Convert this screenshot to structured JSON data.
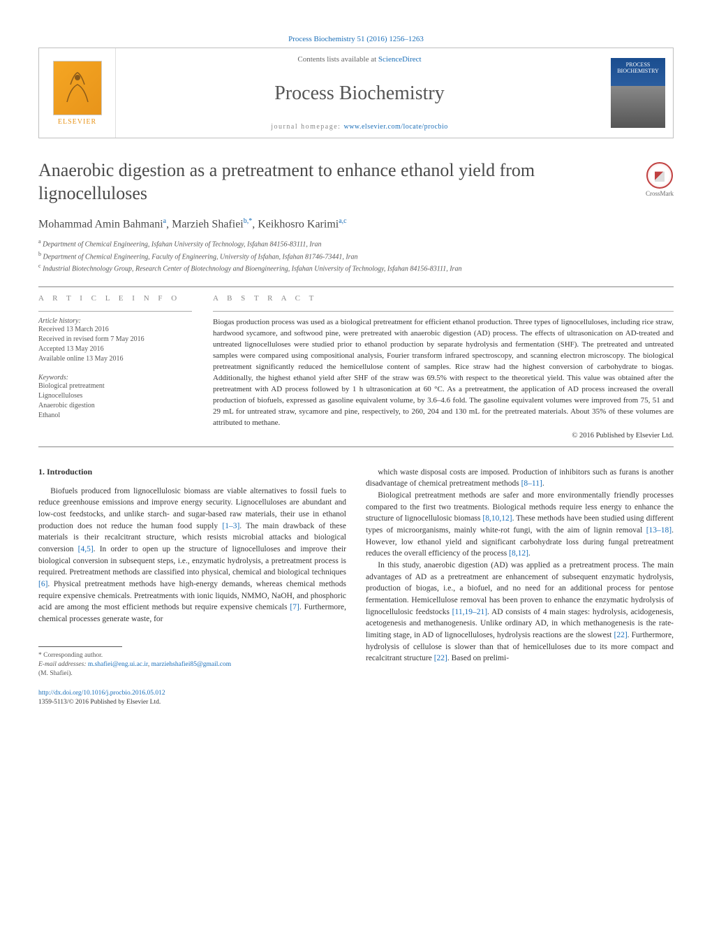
{
  "journal_ref": "Process Biochemistry 51 (2016) 1256–1263",
  "masthead": {
    "publisher": "ELSEVIER",
    "contents_prefix": "Contents lists available at ",
    "contents_link": "ScienceDirect",
    "journal_name": "Process Biochemistry",
    "homepage_prefix": "journal homepage: ",
    "homepage_link": "www.elsevier.com/locate/procbio",
    "cover_title": "PROCESS BIOCHEMISTRY"
  },
  "crossmark_label": "CrossMark",
  "title": "Anaerobic digestion as a pretreatment to enhance ethanol yield from lignocelluloses",
  "authors_html": "Mohammad Amin Bahmani<sup>a</sup>, Marzieh Shafiei<sup>b,*</sup>, Keikhosro Karimi<sup>a,c</sup>",
  "affiliations": [
    {
      "sup": "a",
      "text": "Department of Chemical Engineering, Isfahan University of Technology, Isfahan 84156-83111, Iran"
    },
    {
      "sup": "b",
      "text": "Department of Chemical Engineering, Faculty of Engineering, University of Isfahan, Isfahan 81746-73441, Iran"
    },
    {
      "sup": "c",
      "text": "Industrial Biotechnology Group, Research Center of Biotechnology and Bioengineering, Isfahan University of Technology, Isfahan 84156-83111, Iran"
    }
  ],
  "info": {
    "heading": "a r t i c l e   i n f o",
    "history_label": "Article history:",
    "history": [
      "Received 13 March 2016",
      "Received in revised form 7 May 2016",
      "Accepted 13 May 2016",
      "Available online 13 May 2016"
    ],
    "keywords_label": "Keywords:",
    "keywords": [
      "Biological pretreatment",
      "Lignocelluloses",
      "Anaerobic digestion",
      "Ethanol"
    ]
  },
  "abstract": {
    "heading": "a b s t r a c t",
    "text": "Biogas production process was used as a biological pretreatment for efficient ethanol production. Three types of lignocelluloses, including rice straw, hardwood sycamore, and softwood pine, were pretreated with anaerobic digestion (AD) process. The effects of ultrasonication on AD-treated and untreated lignocelluloses were studied prior to ethanol production by separate hydrolysis and fermentation (SHF). The pretreated and untreated samples were compared using compositional analysis, Fourier transform infrared spectroscopy, and scanning electron microscopy. The biological pretreatment significantly reduced the hemicellulose content of samples. Rice straw had the highest conversion of carbohydrate to biogas. Additionally, the highest ethanol yield after SHF of the straw was 69.5% with respect to the theoretical yield. This value was obtained after the pretreatment with AD process followed by 1 h ultrasonication at 60 °C. As a pretreatment, the application of AD process increased the overall production of biofuels, expressed as gasoline equivalent volume, by 3.6–4.6 fold. The gasoline equivalent volumes were improved from 75, 51 and 29 mL for untreated straw, sycamore and pine, respectively, to 260, 204 and 130 mL for the pretreated materials. About 35% of these volumes are attributed to methane.",
    "copyright": "© 2016 Published by Elsevier Ltd."
  },
  "body": {
    "section_heading": "1. Introduction",
    "col1_paras": [
      "Biofuels produced from lignocellulosic biomass are viable alternatives to fossil fuels to reduce greenhouse emissions and improve energy security. Lignocelluloses are abundant and low-cost feedstocks, and unlike starch- and sugar-based raw materials, their use in ethanol production does not reduce the human food supply [1–3]. The main drawback of these materials is their recalcitrant structure, which resists microbial attacks and biological conversion [4,5]. In order to open up the structure of lignocelluloses and improve their biological conversion in subsequent steps, i.e., enzymatic hydrolysis, a pretreatment process is required. Pretreatment methods are classified into physical, chemical and biological techniques [6]. Physical pretreatment methods have high-energy demands, whereas chemical methods require expensive chemicals. Pretreatments with ionic liquids, NMMO, NaOH, and phosphoric acid are among the most efficient methods but require expensive chemicals [7]. Furthermore, chemical processes generate waste, for"
    ],
    "col2_paras": [
      "which waste disposal costs are imposed. Production of inhibitors such as furans is another disadvantage of chemical pretreatment methods [8–11].",
      "Biological pretreatment methods are safer and more environmentally friendly processes compared to the first two treatments. Biological methods require less energy to enhance the structure of lignocellulosic biomass [8,10,12]. These methods have been studied using different types of microorganisms, mainly white-rot fungi, with the aim of lignin removal [13–18]. However, low ethanol yield and significant carbohydrate loss during fungal pretreatment reduces the overall efficiency of the process [8,12].",
      "In this study, anaerobic digestion (AD) was applied as a pretreatment process. The main advantages of AD as a pretreatment are enhancement of subsequent enzymatic hydrolysis, production of biogas, i.e., a biofuel, and no need for an additional process for pentose fermentation. Hemicellulose removal has been proven to enhance the enzymatic hydrolysis of lignocellulosic feedstocks [11,19–21]. AD consists of 4 main stages: hydrolysis, acidogenesis, acetogenesis and methanogenesis. Unlike ordinary AD, in which methanogenesis is the rate-limiting stage, in AD of lignocelluloses, hydrolysis reactions are the slowest [22]. Furthermore, hydrolysis of cellulose is slower than that of hemicelluloses due to its more compact and recalcitrant structure [22]. Based on prelimi-"
    ],
    "refs_col1": {
      "r1": "[1–3]",
      "r2": "[4,5]",
      "r3": "[6]",
      "r4": "[7]"
    },
    "refs_col2": {
      "r1": "[8–11]",
      "r2": "[8,10,12]",
      "r3": "[13–18]",
      "r4": "[8,12]",
      "r5": "[11,19–21]",
      "r6": "[22]",
      "r7": "[22]"
    }
  },
  "footnote": {
    "corr": "* Corresponding author.",
    "email_label": "E-mail addresses: ",
    "email1": "m.shafiei@eng.ui.ac.ir",
    "email2": "marziehshafiei85@gmail.com",
    "author_paren": "(M. Shafiei)."
  },
  "doi": {
    "link": "http://dx.doi.org/10.1016/j.procbio.2016.05.012",
    "issn_line": "1359-5113/© 2016 Published by Elsevier Ltd."
  },
  "colors": {
    "link": "#1a6eb8",
    "publisher_orange": "#e8941a",
    "text": "#333333",
    "muted": "#555555",
    "border": "#bfbfbf"
  },
  "typography": {
    "body_fontsize_pt": 9,
    "title_fontsize_pt": 20,
    "journal_name_fontsize_pt": 22,
    "font_family": "Georgia, serif"
  }
}
